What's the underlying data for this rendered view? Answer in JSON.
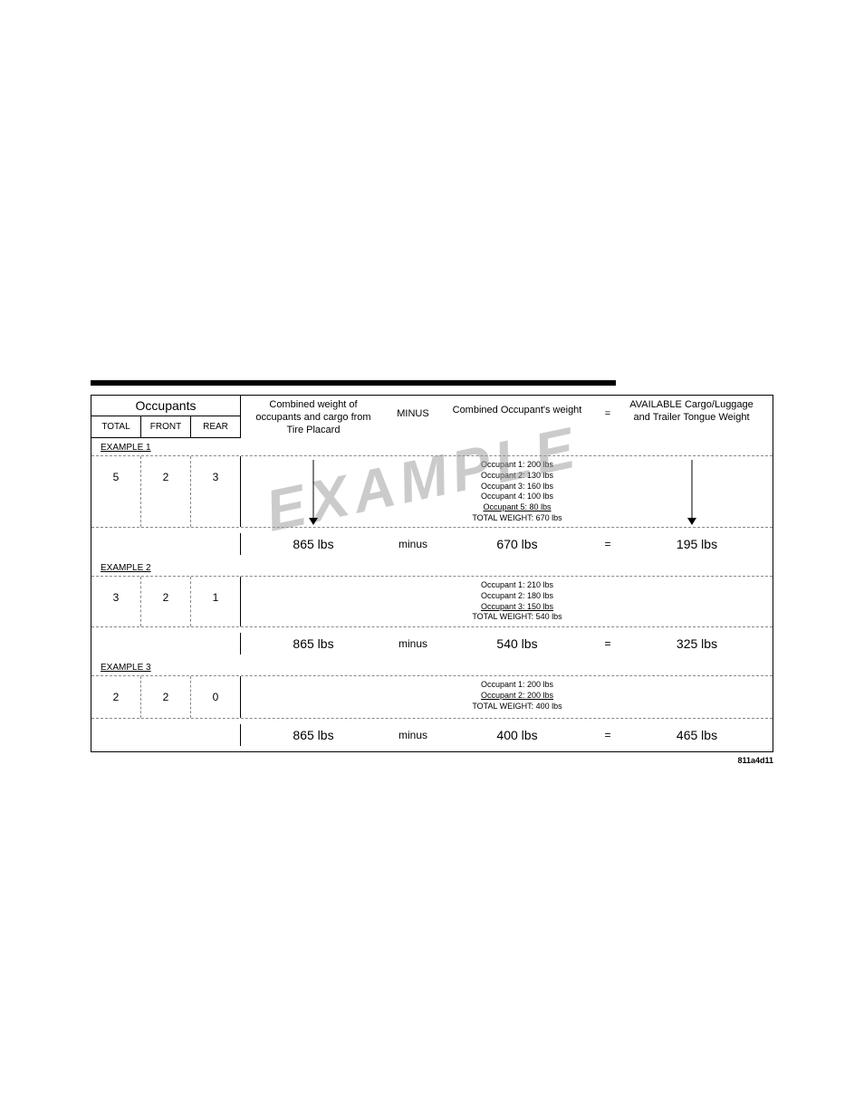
{
  "watermark_text": "EXAMPLE",
  "figure_id": "811a4d11",
  "headers": {
    "occupants_title": "Occupants",
    "occ_total": "TOTAL",
    "occ_front": "FRONT",
    "occ_rear": "REAR",
    "cargo": "Combined weight of occupants and cargo from Tire Placard",
    "minus": "MINUS",
    "combined": "Combined Occupant's weight",
    "eq": "=",
    "available": "AVAILABLE Cargo/Luggage and Trailer Tongue Weight"
  },
  "examples": [
    {
      "label": "EXAMPLE 1",
      "total": "5",
      "front": "2",
      "rear": "3",
      "breakdown": [
        "Occupant 1: 200 lbs",
        "Occupant 2: 130 lbs",
        "Occupant 3: 160 lbs",
        "Occupant 4: 100 lbs",
        "Occupant 5:  80 lbs"
      ],
      "total_weight": "TOTAL WEIGHT: 670 lbs",
      "cargo_val": "865 lbs",
      "minus": "minus",
      "combined_val": "670 lbs",
      "eq": "=",
      "avail_val": "195 lbs",
      "show_arrows": true
    },
    {
      "label": "EXAMPLE 2",
      "total": "3",
      "front": "2",
      "rear": "1",
      "breakdown": [
        "Occupant 1: 210 lbs",
        "Occupant 2: 180 lbs",
        "Occupant 3: 150 lbs"
      ],
      "total_weight": "TOTAL WEIGHT: 540 lbs",
      "cargo_val": "865 lbs",
      "minus": "minus",
      "combined_val": "540 lbs",
      "eq": "=",
      "avail_val": "325 lbs",
      "show_arrows": false
    },
    {
      "label": "EXAMPLE 3",
      "total": "2",
      "front": "2",
      "rear": "0",
      "breakdown": [
        "Occupant 1: 200 lbs",
        "Occupant 2: 200 lbs"
      ],
      "total_weight": "TOTAL WEIGHT: 400 lbs",
      "cargo_val": "865 lbs",
      "minus": "minus",
      "combined_val": "400 lbs",
      "eq": "=",
      "avail_val": "465 lbs",
      "show_arrows": false
    }
  ],
  "colors": {
    "border": "#000000",
    "dashed": "#888888",
    "bg": "#ffffff",
    "watermark": "#999999"
  }
}
